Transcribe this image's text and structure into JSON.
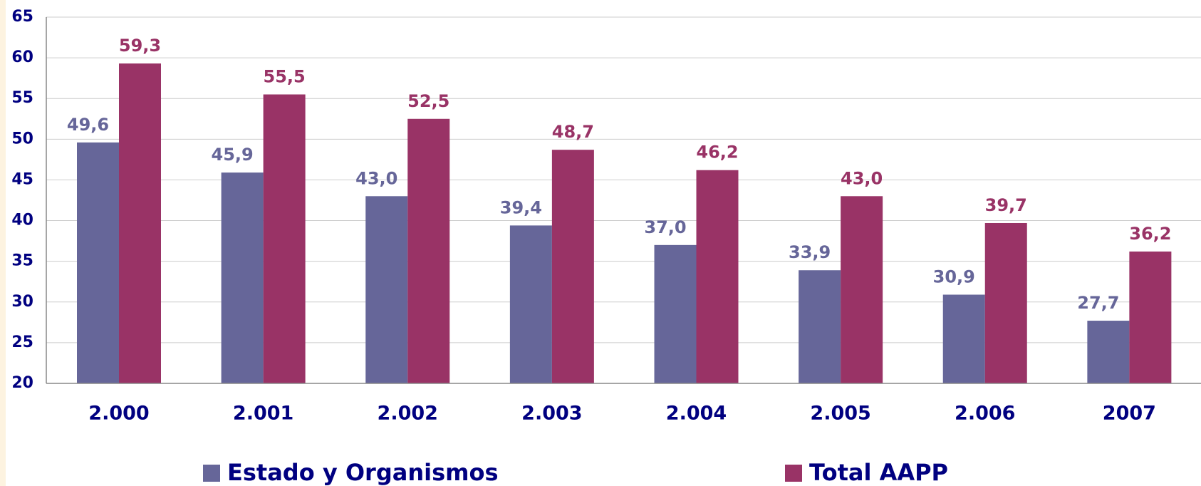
{
  "chart_data": {
    "type": "bar",
    "categories": [
      "2.000",
      "2.001",
      "2.002",
      "2.003",
      "2.004",
      "2.005",
      "2.006",
      "2007"
    ],
    "series": [
      {
        "name": "Estado y Organismos",
        "color": "#666699",
        "values": [
          49.6,
          45.9,
          43.0,
          39.4,
          37.0,
          33.9,
          30.9,
          27.7
        ],
        "value_labels": [
          "49,6",
          "45,9",
          "43,0",
          "39,4",
          "37,0",
          "33,9",
          "30,9",
          "27,7"
        ]
      },
      {
        "name": "Total AAPP",
        "color": "#993366",
        "values": [
          59.3,
          55.5,
          52.5,
          48.7,
          46.2,
          43.0,
          39.7,
          36.2
        ],
        "value_labels": [
          "59,3",
          "55,5",
          "52,5",
          "48,7",
          "46,2",
          "43,0",
          "39,7",
          "36,2"
        ]
      }
    ],
    "ylim": [
      20,
      65
    ],
    "yticks": [
      20,
      25,
      30,
      35,
      40,
      45,
      50,
      55,
      60,
      65
    ],
    "grid": true
  }
}
